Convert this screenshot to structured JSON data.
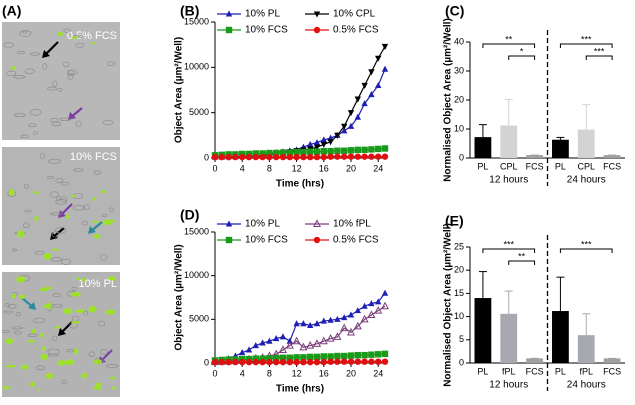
{
  "images": {
    "panel_label": "(A)",
    "labels": [
      "0.5% FCS",
      "10% FCS",
      "10% PL"
    ]
  },
  "chart_data": [
    {
      "type": "line",
      "panel_label": "(B)",
      "x_label": "Time (hrs)",
      "y_label": "Object Area (µm²/Well)",
      "x": [
        0,
        1,
        2,
        3,
        4,
        5,
        6,
        7,
        8,
        9,
        10,
        11,
        12,
        13,
        14,
        15,
        16,
        17,
        18,
        19,
        20,
        21,
        22,
        23,
        24,
        25
      ],
      "xlim": [
        0,
        25
      ],
      "xticks": [
        0,
        4,
        8,
        12,
        16,
        20,
        24
      ],
      "ylim": [
        0,
        15000
      ],
      "yticks": [
        0,
        5000,
        10000,
        15000
      ],
      "legend": "top",
      "series": [
        {
          "name": "10% PL",
          "color": "#1f1fb4",
          "marker": "triangle",
          "values": [
            100,
            100,
            150,
            150,
            200,
            200,
            250,
            300,
            500,
            600,
            700,
            800,
            900,
            1200,
            1500,
            1700,
            2000,
            2200,
            2500,
            3000,
            3500,
            4500,
            6000,
            7000,
            8000,
            9800
          ]
        },
        {
          "name": "10% CPL",
          "color": "#000000",
          "marker": "triangle-down",
          "values": [
            100,
            100,
            100,
            150,
            150,
            200,
            200,
            250,
            300,
            500,
            600,
            700,
            800,
            900,
            1000,
            1200,
            1500,
            1800,
            2500,
            3500,
            5000,
            6500,
            8000,
            9500,
            11000,
            12300
          ]
        },
        {
          "name": "10% FCS",
          "color": "#1a9a1a",
          "marker": "square",
          "values": [
            300,
            350,
            400,
            400,
            450,
            450,
            500,
            500,
            550,
            550,
            600,
            600,
            650,
            650,
            700,
            700,
            750,
            750,
            800,
            800,
            850,
            900,
            900,
            950,
            1000,
            1050
          ]
        },
        {
          "name": "0.5% FCS",
          "color": "#e01010",
          "marker": "circle",
          "values": [
            100,
            100,
            100,
            100,
            100,
            100,
            100,
            100,
            100,
            100,
            100,
            100,
            100,
            100,
            100,
            100,
            100,
            150,
            150,
            150,
            150,
            150,
            150,
            150,
            150,
            150
          ]
        }
      ]
    },
    {
      "type": "bar",
      "panel_label": "(C)",
      "y_label": "Normalised Object Area (µm²/Well)",
      "categories": [
        "PL",
        "CPL",
        "FCS",
        "PL",
        "CPL",
        "FCS"
      ],
      "groups": [
        "12 hours",
        "24 hours"
      ],
      "values": [
        7.2,
        11.2,
        1,
        6.3,
        9.8,
        1
      ],
      "errors": [
        4.3,
        9,
        0,
        0.8,
        8.6,
        0
      ],
      "colors": [
        "#000000",
        "#d3d3d3",
        "#a0a0a0",
        "#000000",
        "#d3d3d3",
        "#a0a0a0"
      ],
      "ylim": [
        0,
        40
      ],
      "yticks": [
        0,
        10,
        20,
        30,
        40
      ],
      "brackets": [
        {
          "label": "**",
          "categories": [
            0,
            2
          ]
        },
        {
          "label": "*",
          "categories": [
            1,
            2
          ]
        },
        {
          "label": "***",
          "categories": [
            3,
            5
          ]
        },
        {
          "label": "***",
          "categories": [
            4,
            5
          ]
        }
      ]
    },
    {
      "type": "line",
      "panel_label": "(D)",
      "x_label": "Time (hrs)",
      "y_label": "Object Area (µm²/Well)",
      "x": [
        0,
        1,
        2,
        3,
        4,
        5,
        6,
        7,
        8,
        9,
        10,
        11,
        12,
        13,
        14,
        15,
        16,
        17,
        18,
        19,
        20,
        21,
        22,
        23,
        24,
        25
      ],
      "xlim": [
        0,
        25
      ],
      "xticks": [
        0,
        4,
        8,
        12,
        16,
        20,
        24
      ],
      "ylim": [
        0,
        15000
      ],
      "yticks": [
        0,
        5000,
        10000,
        15000
      ],
      "legend": "top",
      "series": [
        {
          "name": "10% PL",
          "color": "#1f1fb4",
          "marker": "triangle",
          "values": [
            200,
            300,
            500,
            800,
            1200,
            1500,
            2000,
            2300,
            2500,
            2800,
            3000,
            2500,
            4500,
            4500,
            4300,
            4500,
            4800,
            4900,
            5000,
            5200,
            5500,
            6000,
            6500,
            6800,
            7000,
            8000
          ]
        },
        {
          "name": "10% fPL",
          "color": "#7b3f7b",
          "marker": "triangle-open",
          "values": [
            100,
            150,
            200,
            250,
            300,
            400,
            500,
            600,
            800,
            1000,
            1500,
            2000,
            2500,
            1800,
            2000,
            2200,
            2500,
            2800,
            3000,
            4000,
            3500,
            4200,
            5000,
            5500,
            6000,
            6500
          ]
        },
        {
          "name": "10% FCS",
          "color": "#1a9a1a",
          "marker": "square",
          "values": [
            300,
            350,
            400,
            400,
            450,
            450,
            500,
            500,
            550,
            550,
            600,
            600,
            650,
            650,
            700,
            700,
            750,
            750,
            800,
            800,
            850,
            900,
            900,
            950,
            1000,
            1050
          ]
        },
        {
          "name": "0.5% FCS",
          "color": "#e01010",
          "marker": "circle",
          "values": [
            100,
            100,
            100,
            100,
            100,
            100,
            100,
            100,
            100,
            100,
            100,
            100,
            100,
            100,
            100,
            100,
            100,
            150,
            150,
            150,
            150,
            150,
            150,
            150,
            150,
            150
          ]
        }
      ]
    },
    {
      "type": "bar",
      "panel_label": "(E)",
      "y_label": "Normalised Object Area (µm²/Well)",
      "categories": [
        "PL",
        "fPL",
        "FCS",
        "PL",
        "fPL",
        "FCS"
      ],
      "groups": [
        "12 hours",
        "24 hours"
      ],
      "values": [
        14,
        10.6,
        1,
        11.2,
        6,
        1
      ],
      "errors": [
        5.7,
        4.9,
        0,
        7.3,
        4.6,
        0
      ],
      "colors": [
        "#000000",
        "#a8a8b0",
        "#a0a0a0",
        "#000000",
        "#a8a8b0",
        "#a0a0a0"
      ],
      "ylim": [
        0,
        25
      ],
      "yticks": [
        0,
        5,
        10,
        15,
        20,
        25
      ],
      "brackets": [
        {
          "label": "***",
          "categories": [
            0,
            2
          ]
        },
        {
          "label": "**",
          "categories": [
            1,
            2
          ]
        },
        {
          "label": "***",
          "categories": [
            3,
            5
          ]
        }
      ]
    }
  ]
}
